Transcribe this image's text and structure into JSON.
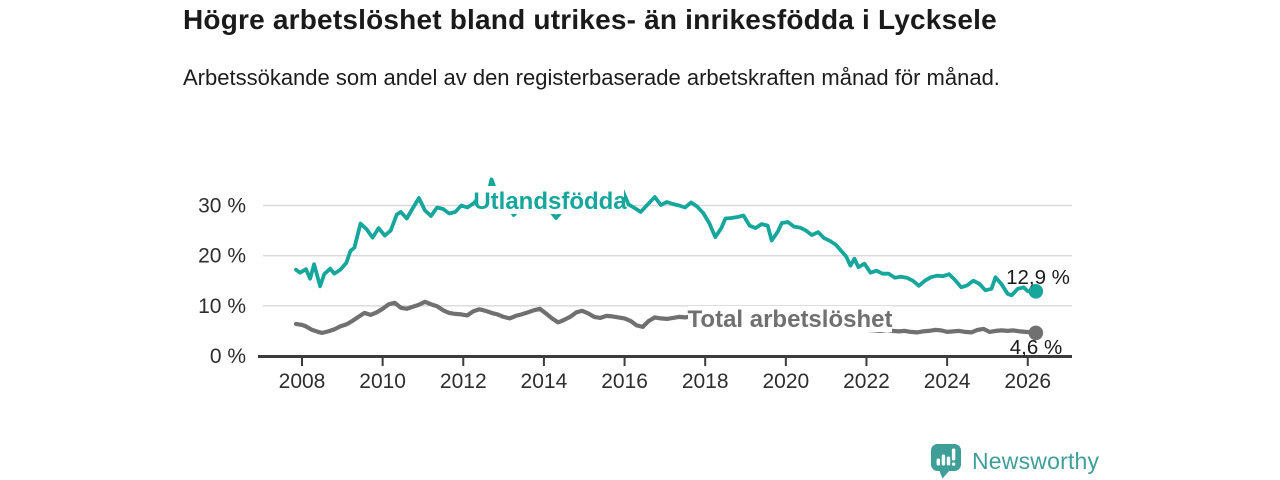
{
  "header": {
    "title": "Högre arbetslöshet bland utrikes- än inrikesfödda i Lycksele",
    "subtitle": "Arbetssökande som andel av den registerbaserade arbetskraften månad för månad."
  },
  "footer": {
    "brand": "Newsworthy"
  },
  "colors": {
    "accent_teal": "#16A69B",
    "series_gray": "#707070",
    "brand_teal": "#3F9E98",
    "axis": "#3c3c3c",
    "axis_text": "#2e2e2e",
    "grid": "#d9d9d9",
    "value_text": "#1a1a1a",
    "background": "#ffffff"
  },
  "chart_data": {
    "type": "line",
    "title": "Högre arbetslöshet bland utrikes- än inrikesfödda i Lycksele",
    "subtitle": "Arbetssökande som andel av den registerbaserade arbetskraften månad för månad.",
    "unit": "%",
    "grid": true,
    "legend_position": "inline-labels",
    "x_axis": {
      "ticks": [
        2008,
        2010,
        2012,
        2014,
        2016,
        2018,
        2020,
        2022,
        2024,
        2026
      ]
    },
    "y_axis": {
      "range": [
        0,
        36
      ],
      "ticks": [
        {
          "value": 0,
          "label": "0 %"
        },
        {
          "value": 10,
          "label": "10 %"
        },
        {
          "value": 20,
          "label": "20 %"
        },
        {
          "value": 30,
          "label": "30 %"
        }
      ]
    },
    "series": [
      {
        "name": "Utlandsfödda",
        "color": "#16A69B",
        "end_value": 12.9,
        "end_label": "12,9 %",
        "points": [
          [
            2007.85,
            17.2
          ],
          [
            2007.95,
            16.6
          ],
          [
            2008.1,
            17.3
          ],
          [
            2008.2,
            15.4
          ],
          [
            2008.3,
            18.3
          ],
          [
            2008.45,
            13.9
          ],
          [
            2008.55,
            16.3
          ],
          [
            2008.7,
            17.4
          ],
          [
            2008.8,
            16.4
          ],
          [
            2008.95,
            17.2
          ],
          [
            2009.1,
            18.6
          ],
          [
            2009.2,
            20.9
          ],
          [
            2009.3,
            21.6
          ],
          [
            2009.45,
            26.4
          ],
          [
            2009.6,
            25.3
          ],
          [
            2009.75,
            23.6
          ],
          [
            2009.9,
            25.5
          ],
          [
            2010.05,
            24.0
          ],
          [
            2010.2,
            25.0
          ],
          [
            2010.35,
            28.2
          ],
          [
            2010.45,
            28.7
          ],
          [
            2010.6,
            27.4
          ],
          [
            2010.75,
            29.5
          ],
          [
            2010.9,
            31.5
          ],
          [
            2011.05,
            29.0
          ],
          [
            2011.2,
            27.9
          ],
          [
            2011.35,
            29.6
          ],
          [
            2011.5,
            29.3
          ],
          [
            2011.65,
            28.4
          ],
          [
            2011.8,
            28.7
          ],
          [
            2011.95,
            30.0
          ],
          [
            2012.1,
            29.6
          ],
          [
            2012.25,
            30.4
          ],
          [
            2012.4,
            31.7
          ],
          [
            2012.55,
            30.2
          ],
          [
            2012.7,
            35.2
          ],
          [
            2012.8,
            33.0
          ],
          [
            2012.95,
            31.0
          ],
          [
            2013.1,
            30.2
          ],
          [
            2013.25,
            28.1
          ],
          [
            2013.4,
            29.3
          ],
          [
            2013.55,
            30.1
          ],
          [
            2013.7,
            30.8
          ],
          [
            2013.85,
            31.3
          ],
          [
            2014.0,
            30.2
          ],
          [
            2014.15,
            29.0
          ],
          [
            2014.3,
            27.5
          ],
          [
            2014.45,
            29.0
          ],
          [
            2014.6,
            29.8
          ],
          [
            2014.75,
            30.3
          ],
          [
            2014.9,
            30.8
          ],
          [
            2015.05,
            30.0
          ],
          [
            2015.2,
            29.5
          ],
          [
            2015.35,
            30.1
          ],
          [
            2015.5,
            30.6
          ],
          [
            2015.65,
            31.0
          ],
          [
            2015.8,
            31.6
          ],
          [
            2015.95,
            33.0
          ],
          [
            2016.1,
            30.2
          ],
          [
            2016.25,
            29.5
          ],
          [
            2016.4,
            28.7
          ],
          [
            2016.55,
            30.0
          ],
          [
            2016.75,
            31.7
          ],
          [
            2016.9,
            30.1
          ],
          [
            2017.05,
            30.7
          ],
          [
            2017.2,
            30.3
          ],
          [
            2017.35,
            30.0
          ],
          [
            2017.5,
            29.6
          ],
          [
            2017.65,
            30.6
          ],
          [
            2017.8,
            29.8
          ],
          [
            2017.95,
            28.5
          ],
          [
            2018.1,
            26.5
          ],
          [
            2018.25,
            23.7
          ],
          [
            2018.4,
            25.5
          ],
          [
            2018.5,
            27.4
          ],
          [
            2018.65,
            27.5
          ],
          [
            2018.8,
            27.7
          ],
          [
            2018.95,
            28.0
          ],
          [
            2019.1,
            26.0
          ],
          [
            2019.25,
            25.5
          ],
          [
            2019.4,
            26.3
          ],
          [
            2019.55,
            26.0
          ],
          [
            2019.65,
            23.0
          ],
          [
            2019.8,
            24.8
          ],
          [
            2019.9,
            26.5
          ],
          [
            2020.05,
            26.7
          ],
          [
            2020.2,
            25.8
          ],
          [
            2020.35,
            25.6
          ],
          [
            2020.5,
            25.0
          ],
          [
            2020.65,
            24.1
          ],
          [
            2020.8,
            24.7
          ],
          [
            2020.95,
            23.5
          ],
          [
            2021.1,
            22.9
          ],
          [
            2021.25,
            22.1
          ],
          [
            2021.4,
            20.7
          ],
          [
            2021.5,
            19.8
          ],
          [
            2021.6,
            18.0
          ],
          [
            2021.7,
            19.4
          ],
          [
            2021.8,
            17.7
          ],
          [
            2021.95,
            18.4
          ],
          [
            2022.1,
            16.6
          ],
          [
            2022.25,
            17.0
          ],
          [
            2022.4,
            16.4
          ],
          [
            2022.55,
            16.4
          ],
          [
            2022.7,
            15.6
          ],
          [
            2022.85,
            15.8
          ],
          [
            2023.0,
            15.6
          ],
          [
            2023.15,
            15.0
          ],
          [
            2023.3,
            14.0
          ],
          [
            2023.45,
            15.0
          ],
          [
            2023.6,
            15.7
          ],
          [
            2023.75,
            16.0
          ],
          [
            2023.9,
            15.9
          ],
          [
            2024.05,
            16.3
          ],
          [
            2024.2,
            15.1
          ],
          [
            2024.35,
            13.7
          ],
          [
            2024.5,
            14.1
          ],
          [
            2024.65,
            15.0
          ],
          [
            2024.8,
            14.4
          ],
          [
            2024.95,
            13.1
          ],
          [
            2025.1,
            13.4
          ],
          [
            2025.2,
            15.7
          ],
          [
            2025.35,
            14.3
          ],
          [
            2025.5,
            12.4
          ],
          [
            2025.6,
            12.1
          ],
          [
            2025.75,
            13.4
          ],
          [
            2025.9,
            13.7
          ],
          [
            2026.0,
            12.9
          ],
          [
            2026.1,
            13.1
          ],
          [
            2026.2,
            12.9
          ]
        ]
      },
      {
        "name": "Total arbetslöshet",
        "color": "#707070",
        "end_value": 4.6,
        "end_label": "4,6 %",
        "points": [
          [
            2007.85,
            6.4
          ],
          [
            2008.0,
            6.2
          ],
          [
            2008.1,
            5.9
          ],
          [
            2008.25,
            5.2
          ],
          [
            2008.4,
            4.8
          ],
          [
            2008.5,
            4.6
          ],
          [
            2008.65,
            4.9
          ],
          [
            2008.8,
            5.3
          ],
          [
            2008.95,
            5.9
          ],
          [
            2009.1,
            6.3
          ],
          [
            2009.25,
            7.0
          ],
          [
            2009.4,
            7.8
          ],
          [
            2009.55,
            8.6
          ],
          [
            2009.7,
            8.2
          ],
          [
            2009.85,
            8.7
          ],
          [
            2010.0,
            9.4
          ],
          [
            2010.15,
            10.3
          ],
          [
            2010.3,
            10.6
          ],
          [
            2010.45,
            9.6
          ],
          [
            2010.6,
            9.4
          ],
          [
            2010.75,
            9.8
          ],
          [
            2010.9,
            10.2
          ],
          [
            2011.05,
            10.8
          ],
          [
            2011.2,
            10.3
          ],
          [
            2011.35,
            9.9
          ],
          [
            2011.5,
            9.1
          ],
          [
            2011.65,
            8.6
          ],
          [
            2011.8,
            8.4
          ],
          [
            2011.95,
            8.3
          ],
          [
            2012.1,
            8.1
          ],
          [
            2012.25,
            8.9
          ],
          [
            2012.4,
            9.3
          ],
          [
            2012.55,
            9.0
          ],
          [
            2012.7,
            8.6
          ],
          [
            2012.85,
            8.3
          ],
          [
            2013.0,
            7.8
          ],
          [
            2013.15,
            7.5
          ],
          [
            2013.3,
            8.0
          ],
          [
            2013.45,
            8.3
          ],
          [
            2013.6,
            8.7
          ],
          [
            2013.75,
            9.1
          ],
          [
            2013.9,
            9.4
          ],
          [
            2014.05,
            8.5
          ],
          [
            2014.2,
            7.5
          ],
          [
            2014.35,
            6.7
          ],
          [
            2014.5,
            7.2
          ],
          [
            2014.65,
            7.8
          ],
          [
            2014.8,
            8.7
          ],
          [
            2014.95,
            9.0
          ],
          [
            2015.1,
            8.5
          ],
          [
            2015.25,
            7.8
          ],
          [
            2015.4,
            7.6
          ],
          [
            2015.55,
            8.0
          ],
          [
            2015.7,
            7.9
          ],
          [
            2015.85,
            7.7
          ],
          [
            2016.0,
            7.5
          ],
          [
            2016.15,
            7.0
          ],
          [
            2016.3,
            6.1
          ],
          [
            2016.45,
            5.8
          ],
          [
            2016.6,
            7.0
          ],
          [
            2016.75,
            7.7
          ],
          [
            2016.9,
            7.5
          ],
          [
            2017.05,
            7.4
          ],
          [
            2017.2,
            7.6
          ],
          [
            2017.35,
            7.8
          ],
          [
            2017.5,
            7.7
          ],
          [
            2017.65,
            7.9
          ],
          [
            2017.8,
            7.7
          ],
          [
            2018.0,
            7.6
          ],
          [
            2018.3,
            7.3
          ],
          [
            2018.6,
            7.1
          ],
          [
            2018.9,
            7.0
          ],
          [
            2019.2,
            6.9
          ],
          [
            2019.5,
            6.8
          ],
          [
            2019.8,
            6.8
          ],
          [
            2020.1,
            6.9
          ],
          [
            2020.4,
            6.7
          ],
          [
            2020.7,
            6.4
          ],
          [
            2021.0,
            6.1
          ],
          [
            2021.3,
            5.8
          ],
          [
            2021.6,
            5.5
          ],
          [
            2021.9,
            5.3
          ],
          [
            2022.05,
            5.2
          ],
          [
            2022.2,
            5.1
          ],
          [
            2022.35,
            5.0
          ],
          [
            2022.5,
            5.2
          ],
          [
            2022.65,
            5.0
          ],
          [
            2022.8,
            4.9
          ],
          [
            2022.95,
            5.0
          ],
          [
            2023.1,
            4.8
          ],
          [
            2023.25,
            4.7
          ],
          [
            2023.4,
            4.9
          ],
          [
            2023.55,
            5.0
          ],
          [
            2023.7,
            5.2
          ],
          [
            2023.85,
            5.1
          ],
          [
            2024.0,
            4.8
          ],
          [
            2024.15,
            4.9
          ],
          [
            2024.3,
            5.0
          ],
          [
            2024.45,
            4.8
          ],
          [
            2024.6,
            4.7
          ],
          [
            2024.75,
            5.2
          ],
          [
            2024.9,
            5.4
          ],
          [
            2025.05,
            4.8
          ],
          [
            2025.2,
            5.0
          ],
          [
            2025.35,
            5.1
          ],
          [
            2025.5,
            5.0
          ],
          [
            2025.65,
            5.1
          ],
          [
            2025.8,
            4.9
          ],
          [
            2025.95,
            4.8
          ],
          [
            2026.1,
            4.7
          ],
          [
            2026.2,
            4.6
          ]
        ]
      }
    ]
  }
}
